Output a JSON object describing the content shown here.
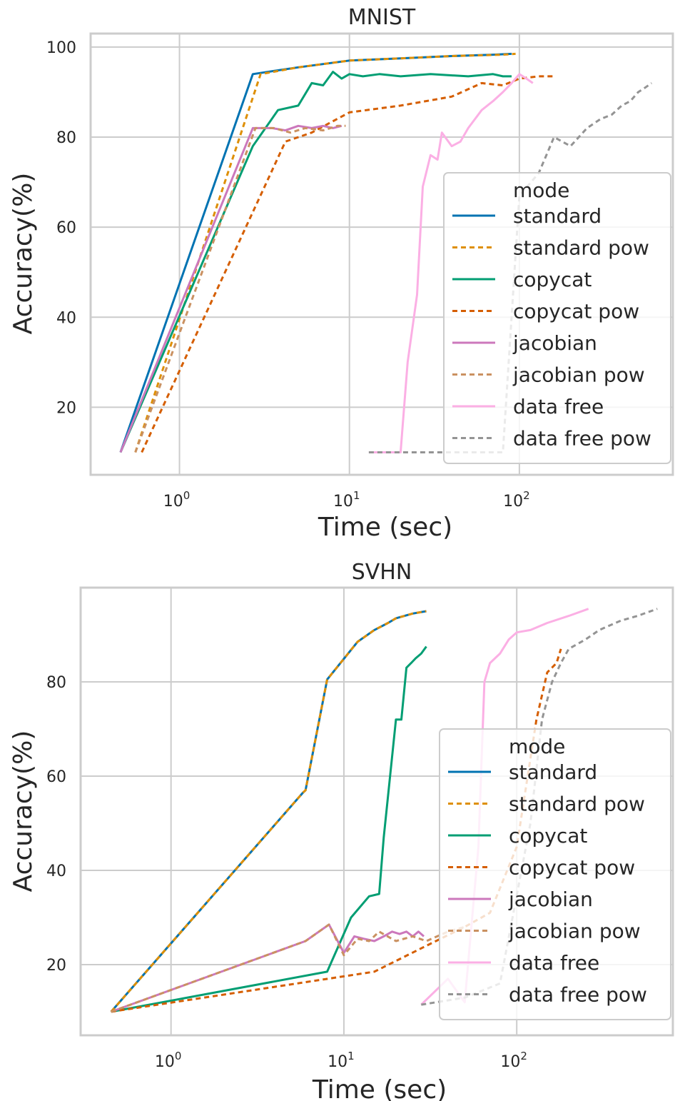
{
  "colors": {
    "standard": "#0173b2",
    "standard pow": "#de8f05",
    "copycat": "#029e73",
    "copycat pow": "#d55e00",
    "jacobian": "#cc78bc",
    "jacobian pow": "#ca9161",
    "data free": "#fbafe4",
    "data free pow": "#949494"
  },
  "chart_data": [
    {
      "type": "line",
      "title": "MNIST",
      "xlabel": "Time (sec)",
      "ylabel": "Accuracy(%)",
      "xscale": "log",
      "xlim": [
        0.3,
        800
      ],
      "ylim": [
        5,
        103
      ],
      "x_ticks": [
        {
          "value": 1,
          "base": "10",
          "exp": "0"
        },
        {
          "value": 10,
          "base": "10",
          "exp": "1"
        },
        {
          "value": 100,
          "base": "10",
          "exp": "2"
        }
      ],
      "y_ticks": [
        20,
        40,
        60,
        80,
        100
      ],
      "grid": true,
      "legend": {
        "title": "mode",
        "placement": "center-right"
      },
      "series": [
        {
          "name": "standard",
          "style": "solid",
          "x": [
            0.45,
            2.7,
            5,
            10,
            20,
            40,
            70,
            90
          ],
          "y": [
            10,
            94,
            95.5,
            97,
            97.5,
            98,
            98.3,
            98.5
          ]
        },
        {
          "name": "standard pow",
          "style": "dashed",
          "x": [
            0.55,
            3,
            5,
            10,
            20,
            40,
            80,
            95
          ],
          "y": [
            10,
            94,
            95.5,
            97,
            97.5,
            98,
            98.3,
            98.5
          ]
        },
        {
          "name": "copycat",
          "style": "solid",
          "x": [
            0.45,
            2.7,
            3.8,
            5,
            6,
            7,
            8,
            9,
            10,
            12,
            15,
            20,
            30,
            50,
            70,
            80,
            90
          ],
          "y": [
            10,
            78,
            86,
            87,
            92,
            91.5,
            94.5,
            93,
            94,
            93.5,
            94,
            93.5,
            94,
            93.5,
            94,
            93.5,
            93.5
          ]
        },
        {
          "name": "copycat pow",
          "style": "dashed",
          "x": [
            0.6,
            4.2,
            6,
            10,
            20,
            40,
            60,
            80,
            100,
            130,
            160
          ],
          "y": [
            10,
            79,
            81,
            85.5,
            87,
            89,
            92,
            91.5,
            93,
            93.5,
            93.5
          ]
        },
        {
          "name": "jacobian",
          "style": "solid",
          "x": [
            0.45,
            2.7,
            3.5,
            4.2,
            5,
            6,
            7,
            8,
            9
          ],
          "y": [
            10,
            82,
            82,
            81.5,
            82.5,
            82,
            82.5,
            82,
            82.5
          ]
        },
        {
          "name": "jacobian pow",
          "style": "dashed",
          "x": [
            0.55,
            2.8,
            3.6,
            4.5,
            5.5,
            7,
            8.5,
            9.5
          ],
          "y": [
            10,
            82,
            82,
            81,
            82,
            81.5,
            82.5,
            82.5
          ]
        },
        {
          "name": "data free",
          "style": "solid",
          "x": [
            13,
            17,
            20,
            22,
            25,
            27,
            30,
            33,
            35,
            40,
            45,
            50,
            60,
            70,
            80,
            90,
            100,
            110,
            120
          ],
          "y": [
            10,
            10,
            10,
            30,
            45,
            69,
            76,
            75,
            81,
            78,
            79,
            82,
            86,
            88,
            90,
            92,
            94,
            93,
            92
          ]
        },
        {
          "name": "data free pow",
          "style": "dashed",
          "x": [
            13,
            30,
            60,
            80,
            100,
            130,
            160,
            200,
            250,
            300,
            350,
            400,
            450,
            500,
            550,
            600
          ],
          "y": [
            10,
            10,
            10,
            10,
            67,
            72,
            80,
            78,
            82,
            84,
            85,
            87,
            88,
            90,
            91,
            92
          ]
        }
      ]
    },
    {
      "type": "line",
      "title": "SVHN",
      "xlabel": "Time (sec)",
      "ylabel": "Accuracy(%)",
      "xscale": "log",
      "xlim": [
        0.3,
        800
      ],
      "ylim": [
        5,
        100
      ],
      "x_ticks": [
        {
          "value": 1,
          "base": "10",
          "exp": "0"
        },
        {
          "value": 10,
          "base": "10",
          "exp": "1"
        },
        {
          "value": 100,
          "base": "10",
          "exp": "2"
        }
      ],
      "y_ticks": [
        20,
        40,
        60,
        80
      ],
      "grid": true,
      "legend": {
        "title": "mode",
        "placement": "lower-right"
      },
      "series": [
        {
          "name": "standard",
          "style": "solid",
          "x": [
            0.45,
            5.8,
            6,
            8,
            12,
            15,
            18,
            20,
            25,
            30
          ],
          "y": [
            10,
            56.5,
            57,
            80.5,
            88.5,
            91,
            92.5,
            93.5,
            94.5,
            95
          ]
        },
        {
          "name": "standard pow",
          "style": "dashed",
          "x": [
            0.45,
            5.8,
            6,
            8,
            12,
            15,
            18,
            20,
            25,
            30
          ],
          "y": [
            10,
            56.5,
            57,
            80.5,
            88.5,
            91,
            92.5,
            93.5,
            94.5,
            95
          ]
        },
        {
          "name": "copycat",
          "style": "solid",
          "x": [
            0.45,
            8,
            11,
            14,
            16,
            17,
            18.5,
            20,
            21.5,
            23,
            24.5,
            26,
            28,
            30
          ],
          "y": [
            10,
            18.5,
            30,
            34.5,
            35,
            47,
            60,
            72,
            72,
            83,
            84,
            85,
            86,
            87.5
          ]
        },
        {
          "name": "copycat pow",
          "style": "dashed",
          "x": [
            0.45,
            15,
            30,
            50,
            70,
            100,
            130,
            150,
            170,
            180
          ],
          "y": [
            10,
            18.5,
            24,
            28,
            31,
            45,
            72,
            82,
            84,
            87
          ]
        },
        {
          "name": "jacobian",
          "style": "solid",
          "x": [
            0.45,
            6,
            8.2,
            10,
            11.5,
            13,
            15,
            17,
            19,
            21,
            23,
            25,
            27,
            29
          ],
          "y": [
            10,
            25,
            28.5,
            22.5,
            26,
            25.5,
            25,
            26,
            27,
            26.5,
            27,
            26,
            27,
            26
          ]
        },
        {
          "name": "jacobian pow",
          "style": "dashed",
          "x": [
            0.45,
            6,
            8.2,
            10,
            12,
            14,
            16,
            20,
            25,
            30,
            40,
            50
          ],
          "y": [
            10,
            25,
            28.5,
            22,
            25.5,
            25,
            27,
            25,
            26,
            25,
            27,
            28
          ]
        },
        {
          "name": "data free",
          "style": "solid",
          "x": [
            28,
            40,
            50,
            60,
            65,
            70,
            80,
            90,
            100,
            120,
            150,
            200,
            260
          ],
          "y": [
            11.5,
            17,
            12,
            45,
            80,
            84,
            86,
            89,
            90.5,
            91,
            92.5,
            94,
            95.5
          ]
        },
        {
          "name": "data free pow",
          "style": "dashed",
          "x": [
            28,
            50,
            80,
            120,
            140,
            160,
            180,
            200,
            250,
            300,
            400,
            500,
            650
          ],
          "y": [
            11.5,
            13,
            16,
            50,
            72,
            80,
            84,
            87,
            89,
            91,
            93,
            94,
            95.5
          ]
        }
      ]
    }
  ]
}
